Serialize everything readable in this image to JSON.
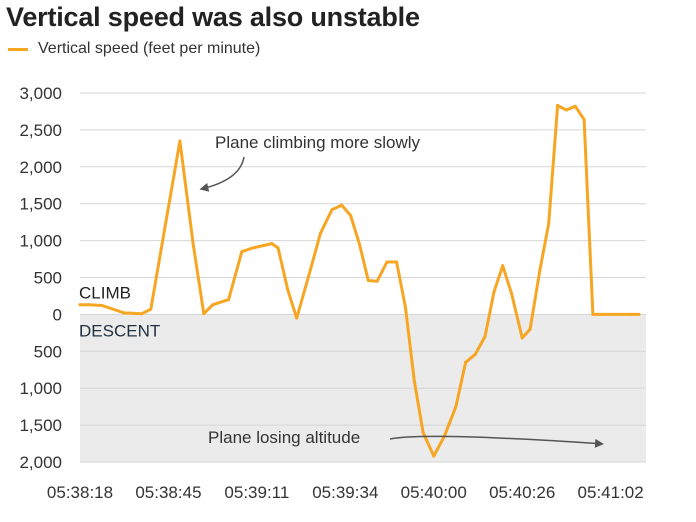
{
  "title": "Vertical speed was also unstable",
  "legend": {
    "label": "Vertical speed (feet per minute)",
    "color": "#f6a623"
  },
  "regions": {
    "climb": "CLIMB",
    "descent": "DESCENT"
  },
  "annotations": [
    {
      "text": "Plane climbing more slowly",
      "target": {
        "x": 12.8,
        "y": 2350
      }
    },
    {
      "text": "Plane losing altitude",
      "target": {
        "x": 59.5,
        "y": -1700
      }
    }
  ],
  "colors": {
    "line": "#f6a623",
    "descent_bg": "#ebebeb",
    "grid": "#d6d6d6",
    "arrow": "#555555"
  },
  "chart_data": {
    "type": "line",
    "title": "Vertical speed was also unstable",
    "xlabel": "",
    "ylabel": "",
    "ylim": [
      -2000,
      3000
    ],
    "xlim": [
      0,
      64
    ],
    "grid": true,
    "legend_position": "top-left",
    "y_ticks": [
      3000,
      2500,
      2000,
      1500,
      1000,
      500,
      0,
      -500,
      -1000,
      -1500,
      -2000
    ],
    "y_tick_labels": [
      "3,000",
      "2,500",
      "2,000",
      "1,500",
      "1,000",
      "500",
      "0",
      "500",
      "1,000",
      "1,500",
      "2,000"
    ],
    "x_ticks": [
      0,
      10,
      20,
      30,
      40,
      50,
      60
    ],
    "x_tick_labels": [
      "05:38:18",
      "05:38:45",
      "05:39:11",
      "05:39:34",
      "05:40:00",
      "05:40:26",
      "05:41:02"
    ],
    "series": [
      {
        "name": "Vertical speed (feet per minute)",
        "x": [
          0,
          1,
          2.5,
          5,
          7,
          8,
          11.3,
          12.8,
          14,
          15,
          16.8,
          18.3,
          19.5,
          21.7,
          22.4,
          23.5,
          24.5,
          26,
          27.2,
          28.5,
          29.6,
          30.6,
          31.6,
          32.6,
          33.6,
          34.7,
          35.8,
          36.8,
          37.8,
          38.8,
          40.0,
          41.2,
          42.5,
          43.6,
          44.7,
          45.8,
          46.8,
          47.8,
          48.8,
          50.0,
          50.9,
          52.0,
          53.0,
          54.0,
          55.0,
          56.0,
          57.0,
          58.0,
          59.0,
          59.5,
          60.4,
          61.3,
          62.3,
          63.2
        ],
        "y": [
          130,
          130,
          120,
          20,
          10,
          70,
          2350,
          950,
          10,
          130,
          200,
          850,
          900,
          960,
          900,
          330,
          -50,
          580,
          1100,
          1420,
          1480,
          1340,
          950,
          460,
          450,
          710,
          710,
          100,
          -900,
          -1600,
          -1920,
          -1650,
          -1250,
          -650,
          -540,
          -300,
          300,
          660,
          280,
          -320,
          -200,
          600,
          1230,
          2830,
          2770,
          2820,
          2640,
          0,
          0,
          0,
          0,
          0,
          0,
          0
        ]
      }
    ]
  }
}
